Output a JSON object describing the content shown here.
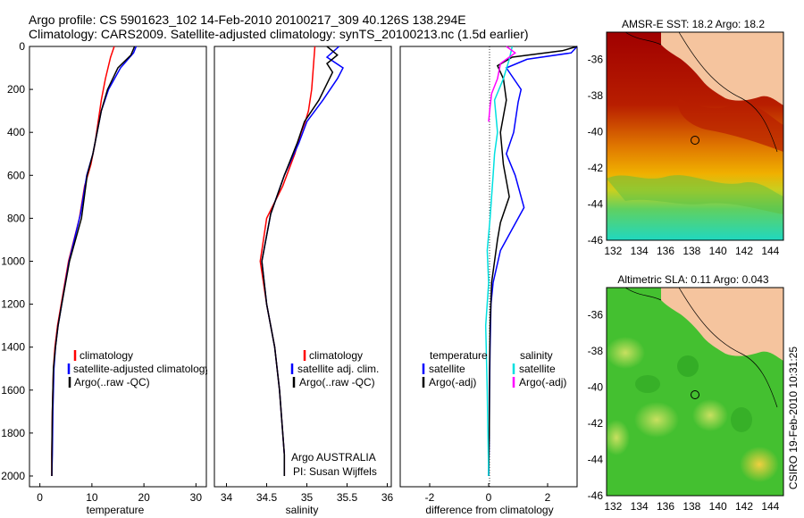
{
  "header": {
    "line1": "Argo profile: CS 5901623_102 14-Feb-2010 20100217_309 40.126S 138.294E",
    "line2": "Climatology: CARS2009. Satellite-adjusted climatology: synTS_20100213.nc (1.5d earlier)"
  },
  "footer_text": "CSIRO 19-Feb-2010 10:31:25",
  "colors": {
    "climatology": "#ff0000",
    "satellite": "#0000ff",
    "argo": "#000000",
    "salinity_satellite": "#00e0e0",
    "salinity_argo": "#ff00ff",
    "land": "#f5c49e"
  },
  "chart_data": [
    {
      "type": "line",
      "xlabel": "temperature",
      "ylabel": "",
      "xlim": [
        -2,
        32
      ],
      "ylim": [
        2050,
        0
      ],
      "xticks": [
        0,
        10,
        20,
        30
      ],
      "yticks": [
        0,
        200,
        400,
        600,
        800,
        1000,
        1200,
        1400,
        1600,
        1800,
        2000
      ],
      "legend": [
        "climatology",
        "satellite-adjusted climatology",
        "Argo(..raw -QC)"
      ],
      "series": [
        {
          "name": "climatology",
          "color": "#ff0000",
          "x": [
            14.3,
            13.6,
            12.6,
            11.8,
            11.2,
            10.6,
            9.8,
            8.6,
            7.6,
            5.5,
            4.1,
            3.4,
            2.9,
            2.6,
            2.4,
            2.3,
            2.3
          ],
          "y": [
            0,
            50,
            150,
            250,
            350,
            450,
            550,
            650,
            800,
            1000,
            1200,
            1300,
            1400,
            1500,
            1700,
            1900,
            2000
          ]
        },
        {
          "name": "satellite-adjusted climatology",
          "color": "#0000ff",
          "x": [
            18.5,
            18.0,
            15.5,
            13.2,
            11.8,
            11.0,
            10.2,
            9.0,
            7.8,
            5.6,
            4.2,
            3.5,
            3.0,
            2.7,
            2.5,
            2.4,
            2.3
          ],
          "y": [
            0,
            30,
            100,
            200,
            300,
            400,
            500,
            600,
            780,
            1000,
            1200,
            1300,
            1400,
            1500,
            1700,
            1900,
            2000
          ]
        },
        {
          "name": "Argo(..raw -QC)",
          "color": "#000000",
          "x": [
            18.2,
            17.5,
            15.0,
            13.0,
            11.8,
            11.0,
            10.2,
            9.1,
            8.0,
            5.7,
            4.2,
            3.5,
            3.0,
            2.6,
            2.4,
            2.3,
            2.3
          ],
          "y": [
            0,
            40,
            100,
            200,
            300,
            400,
            500,
            600,
            800,
            1000,
            1200,
            1300,
            1400,
            1500,
            1700,
            1900,
            2000
          ]
        }
      ]
    },
    {
      "type": "line",
      "xlabel": "salinity",
      "ylabel": "",
      "xlim": [
        33.85,
        36.05
      ],
      "ylim": [
        2050,
        0
      ],
      "xticks": [
        34,
        34.5,
        35,
        35.5,
        36
      ],
      "xtick_labels": [
        "34",
        "34.5",
        "35",
        "35.5",
        "36"
      ],
      "yticks": [],
      "legend": [
        "climatology",
        "satellite adj. clim.",
        "Argo(..raw -QC)"
      ],
      "annotation": [
        "Argo AUSTRALIA",
        "PI: Susan Wijffels"
      ],
      "series": [
        {
          "name": "climatology",
          "color": "#ff0000",
          "x": [
            35.1,
            35.08,
            35.06,
            35.02,
            34.98,
            34.93,
            34.85,
            34.7,
            34.5,
            34.42,
            34.5,
            34.6,
            34.66,
            34.7,
            34.72,
            34.72
          ],
          "y": [
            0,
            100,
            200,
            300,
            350,
            400,
            500,
            650,
            800,
            1000,
            1200,
            1400,
            1600,
            1800,
            1900,
            2000
          ]
        },
        {
          "name": "satellite adj. clim.",
          "color": "#0000ff",
          "x": [
            35.4,
            35.25,
            35.45,
            35.38,
            35.2,
            35.0,
            34.9,
            34.72,
            34.55,
            34.44,
            34.5,
            34.6,
            34.66,
            34.7,
            34.72,
            34.72
          ],
          "y": [
            0,
            50,
            100,
            150,
            250,
            350,
            450,
            600,
            780,
            1000,
            1200,
            1400,
            1600,
            1800,
            1900,
            2000
          ]
        },
        {
          "name": "Argo(..raw -QC)",
          "color": "#000000",
          "x": [
            35.25,
            35.38,
            35.25,
            35.32,
            35.15,
            34.97,
            34.88,
            34.72,
            34.55,
            34.44,
            34.5,
            34.6,
            34.66,
            34.7,
            34.72,
            34.72
          ],
          "y": [
            0,
            40,
            80,
            120,
            250,
            350,
            450,
            600,
            780,
            1000,
            1200,
            1400,
            1600,
            1800,
            1900,
            2000
          ]
        }
      ]
    },
    {
      "type": "line",
      "xlabel": "difference from climatology",
      "ylabel": "",
      "xlim": [
        -3,
        3
      ],
      "ylim": [
        2050,
        0
      ],
      "xticks": [
        -2,
        0,
        2
      ],
      "yticks": [],
      "legend_temperature": {
        "heading": "temperature",
        "items": [
          "satellite",
          "Argo(-adj)"
        ]
      },
      "legend_salinity": {
        "heading": "salinity",
        "items": [
          "satellite",
          "Argo(-adj)"
        ]
      },
      "series": [
        {
          "name": "temperature satellite",
          "color": "#0000ff",
          "x": [
            4.0,
            2.8,
            1.3,
            0.6,
            0.9,
            1.1,
            1.0,
            0.85,
            0.6,
            0.9,
            1.2,
            0.8,
            0.4,
            0.15,
            0.08,
            0.05,
            0.03,
            0.02,
            0.0
          ],
          "y": [
            0,
            30,
            60,
            100,
            160,
            200,
            260,
            400,
            500,
            600,
            750,
            850,
            950,
            1100,
            1200,
            1400,
            1600,
            1800,
            2000
          ]
        },
        {
          "name": "temperature Argo(-adj)",
          "color": "#000000",
          "x": [
            3.8,
            2.5,
            0.8,
            0.3,
            0.5,
            0.6,
            0.4,
            0.5,
            0.7,
            0.4,
            0.3,
            0.2,
            0.1,
            0.05,
            0.03,
            0.02,
            0.0
          ],
          "y": [
            0,
            20,
            50,
            90,
            150,
            250,
            400,
            550,
            700,
            820,
            900,
            1000,
            1100,
            1300,
            1500,
            1800,
            2000
          ]
        },
        {
          "name": "salinity satellite",
          "color": "#00e0e0",
          "x": [
            0.8,
            0.7,
            0.5,
            0.2,
            0.3,
            0.2,
            0.15,
            0.1,
            0.05,
            -0.05,
            0.0,
            -0.1,
            -0.05,
            0.0
          ],
          "y": [
            0,
            60,
            150,
            250,
            400,
            500,
            600,
            700,
            800,
            950,
            1100,
            1300,
            1600,
            2000
          ]
        },
        {
          "name": "salinity Argo(-adj)",
          "color": "#ff00ff",
          "x": [
            0.6,
            0.9,
            0.4,
            0.3,
            0.1,
            0.05,
            0.0
          ],
          "y": [
            0,
            30,
            80,
            150,
            220,
            280,
            350
          ]
        }
      ]
    },
    {
      "type": "heatmap",
      "title": "AMSR-E SST: 18.2 Argo: 18.2",
      "xlim": [
        131.5,
        145
      ],
      "ylim": [
        -46,
        -34.5
      ],
      "xticks": [
        132,
        134,
        136,
        138,
        140,
        142,
        144
      ],
      "yticks": [
        -36,
        -38,
        -40,
        -42,
        -44,
        -46
      ],
      "marker": {
        "lon": 138.3,
        "lat": -40.13
      }
    },
    {
      "type": "heatmap",
      "title": "Altimetric SLA: 0.11 Argo: 0.043",
      "xlim": [
        131.5,
        145
      ],
      "ylim": [
        -46,
        -34.5
      ],
      "xticks": [
        132,
        134,
        136,
        138,
        140,
        142,
        144
      ],
      "yticks": [
        -36,
        -38,
        -40,
        -42,
        -44,
        -46
      ],
      "marker": {
        "lon": 138.3,
        "lat": -40.13
      }
    }
  ]
}
